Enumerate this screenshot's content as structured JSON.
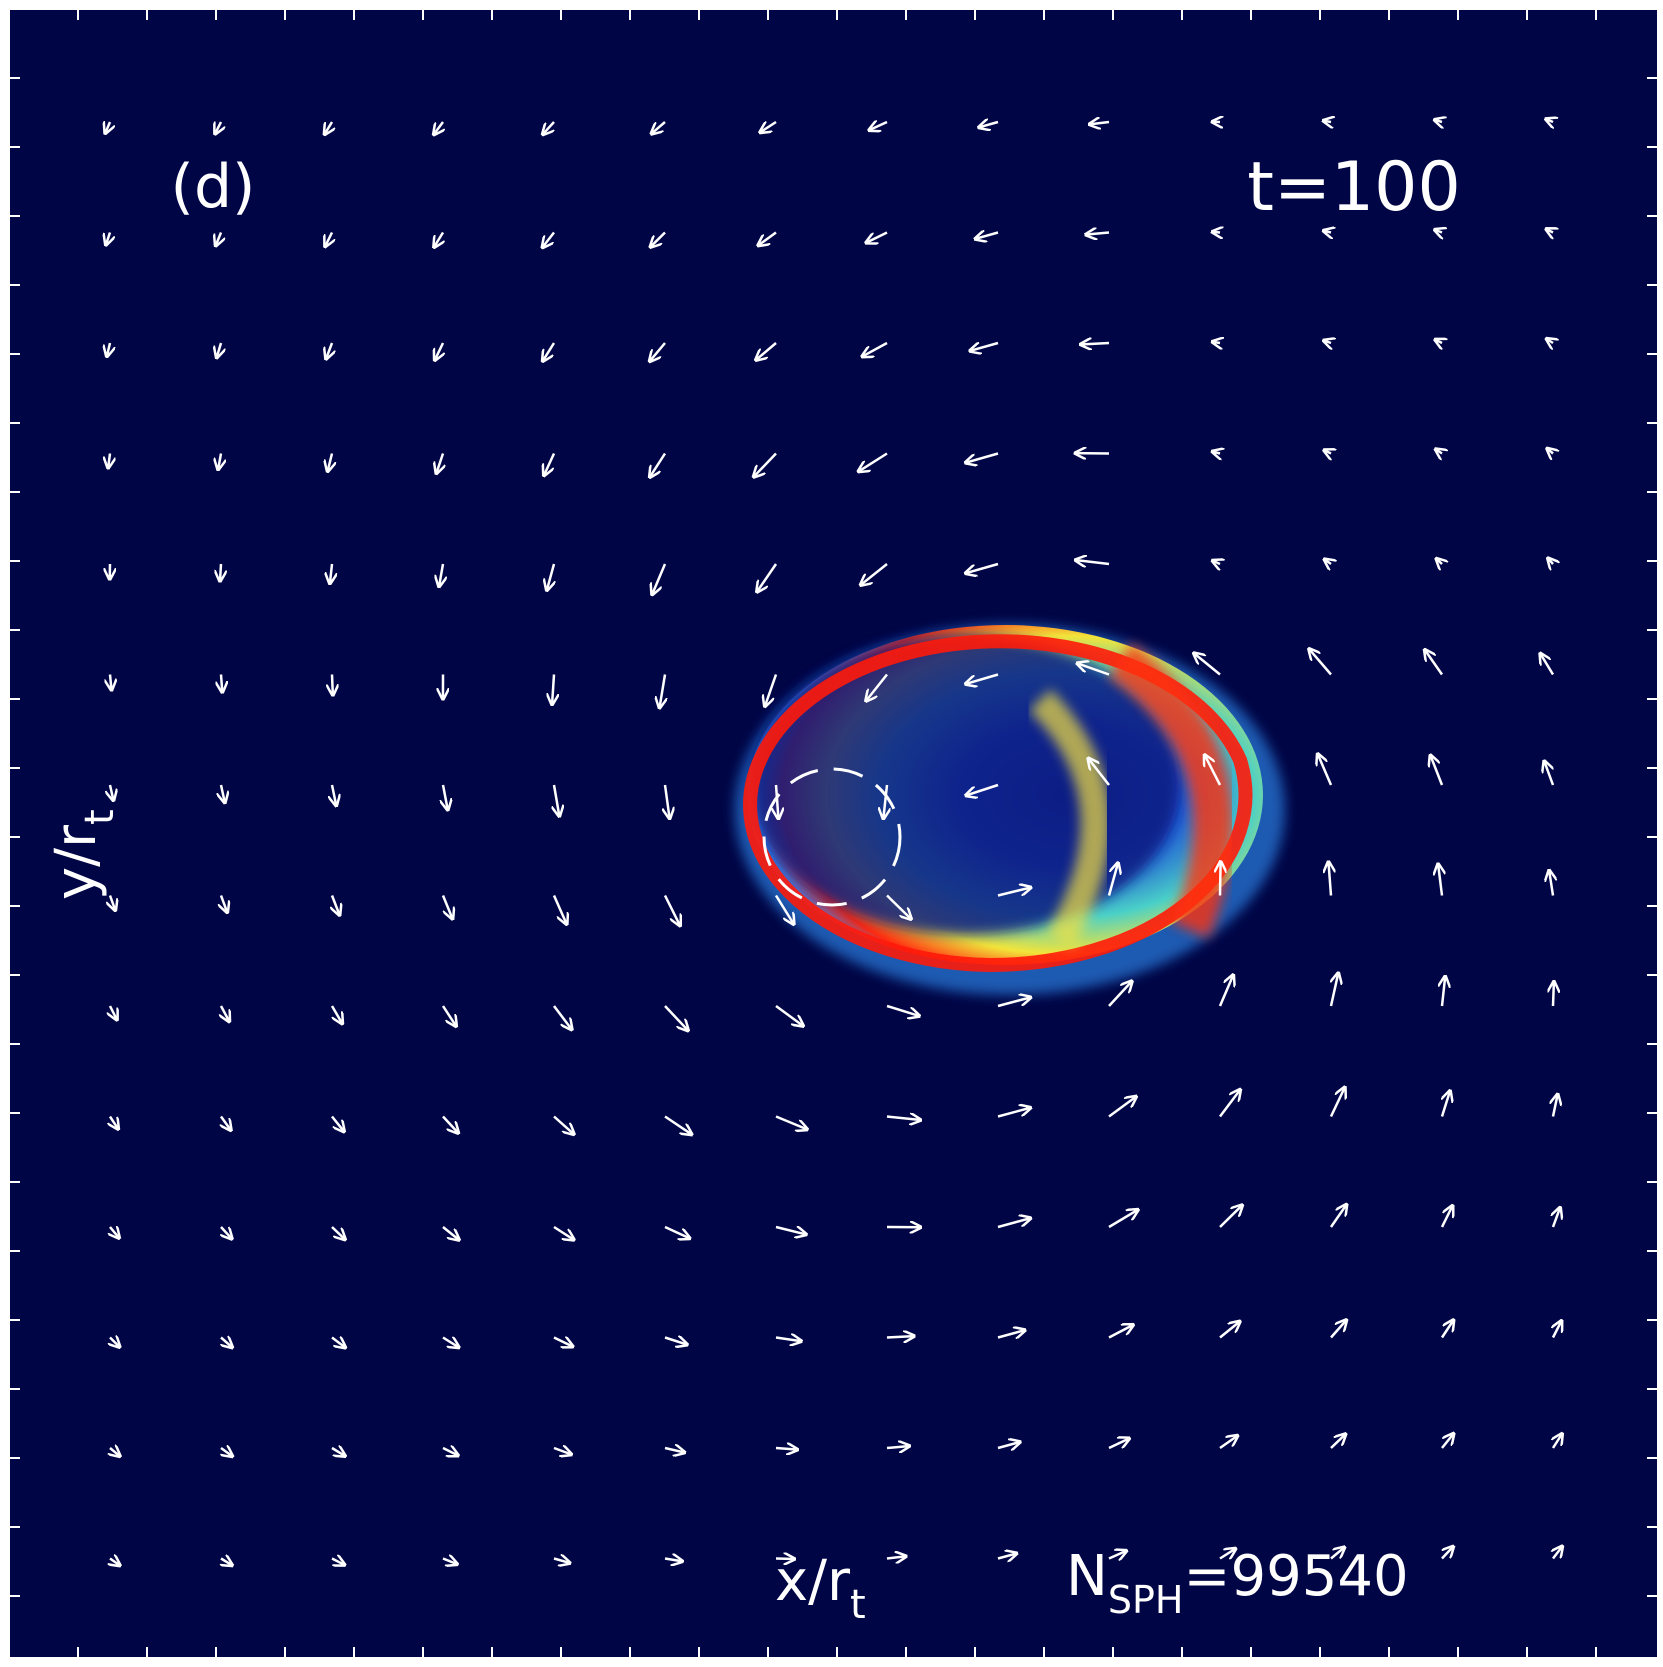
{
  "panel_label": "(d)",
  "time_label": "t=100",
  "x_axis_label": {
    "main": "x/r",
    "subscript": "t"
  },
  "y_axis_label": {
    "main": "y/r",
    "subscript": "t"
  },
  "particle_label": {
    "main": "N",
    "subscript": "SPH",
    "value": "=99540"
  }
}
